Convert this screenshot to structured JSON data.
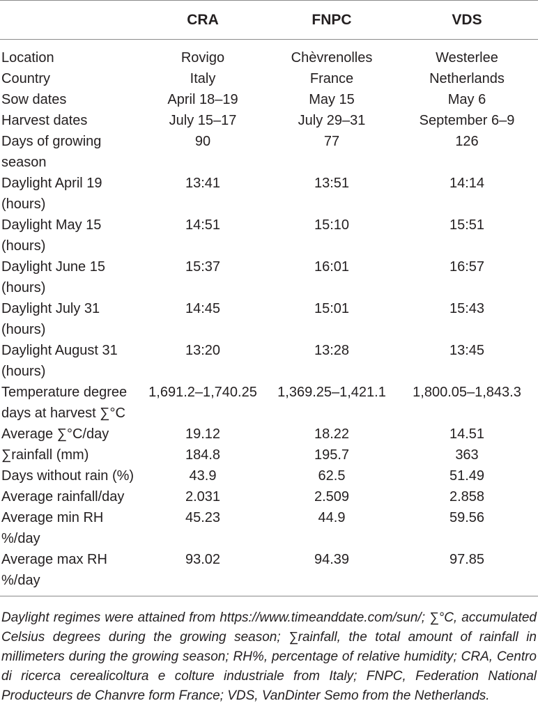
{
  "table": {
    "headers": [
      "",
      "CRA",
      "FNPC",
      "VDS"
    ],
    "rows": [
      [
        "Location",
        "Rovigo",
        "Chèvrenolles",
        "Westerlee"
      ],
      [
        "Country",
        "Italy",
        "France",
        "Netherlands"
      ],
      [
        "Sow dates",
        "April 18–19",
        "May 15",
        "May 6"
      ],
      [
        "Harvest dates",
        "July 15–17",
        "July 29–31",
        "September 6–9"
      ],
      [
        "Days of growing season",
        "90",
        "77",
        "126"
      ],
      [
        "Daylight April 19 (hours)",
        "13:41",
        "13:51",
        "14:14"
      ],
      [
        "Daylight May 15 (hours)",
        "14:51",
        "15:10",
        "15:51"
      ],
      [
        "Daylight June 15 (hours)",
        "15:37",
        "16:01",
        "16:57"
      ],
      [
        "Daylight July 31 (hours)",
        "14:45",
        "15:01",
        "15:43"
      ],
      [
        "Daylight August 31 (hours)",
        "13:20",
        "13:28",
        "13:45"
      ],
      [
        "Temperature degree days at harvest ∑°C",
        "1,691.2–1,740.25",
        "1,369.25–1,421.1",
        "1,800.05–1,843.3"
      ],
      [
        "Average ∑°C/day",
        "19.12",
        "18.22",
        "14.51"
      ],
      [
        "∑rainfall (mm)",
        "184.8",
        "195.7",
        "363"
      ],
      [
        "Days without rain (%)",
        "43.9",
        "62.5",
        "51.49"
      ],
      [
        "Average rainfall/day",
        "2.031",
        "2.509",
        "2.858"
      ],
      [
        "Average min RH %/day",
        "45.23",
        "44.9",
        "59.56"
      ],
      [
        "Average max RH %/day",
        "93.02",
        "94.39",
        "97.85"
      ]
    ]
  },
  "footnote": "Daylight regimes were attained from https://www.timeanddate.com/sun/; ∑°C, accumulated Celsius degrees during the growing season; ∑rainfall, the total amount of rainfall in millimeters during the growing season; RH%, percentage of relative humidity; CRA, Centro di ricerca cerealicoltura e colture industriale from Italy; FNPC, Federation National Producteurs de Chanvre form France; VDS, VanDinter Semo from the Netherlands."
}
